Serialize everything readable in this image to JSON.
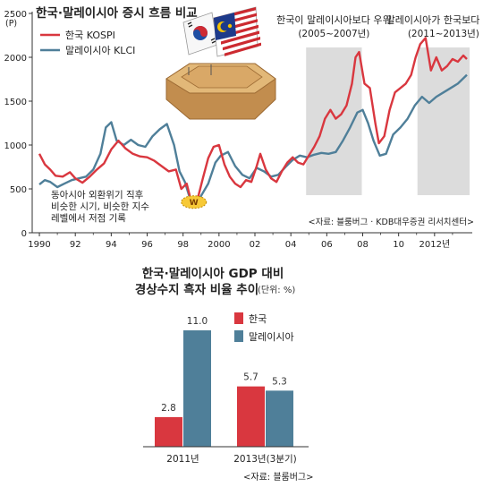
{
  "colors": {
    "korea": "#d9373f",
    "malaysia": "#4f7f99",
    "shade": "#dcdcdc",
    "axis": "#333333",
    "pedestal_top": "#e2b878",
    "pedestal_side": "#c28d4e"
  },
  "chart_data": [
    {
      "type": "line",
      "title": "한국·말레이시아 증시 흐름 비교",
      "unit_label": "(P)",
      "x_tick_labels": [
        "1990",
        "92",
        "94",
        "96",
        "98",
        "2000",
        "02",
        "04",
        "06",
        "08",
        "10",
        "2012년"
      ],
      "x_tick_values": [
        1990,
        1992,
        1994,
        1996,
        1998,
        2000,
        2002,
        2004,
        2006,
        2008,
        2010,
        2012
      ],
      "y_ticks": [
        0,
        500,
        1000,
        1500,
        2000,
        2500
      ],
      "xlim": [
        1989.6,
        2014.1
      ],
      "ylim": [
        0,
        2500
      ],
      "grid": false,
      "legend_position": "top-left",
      "series": [
        {
          "name": "한국 KOSPI",
          "color_key": "korea",
          "x": [
            1990,
            1990.3,
            1990.6,
            1990.9,
            1991.3,
            1991.7,
            1992.0,
            1992.4,
            1992.8,
            1993.2,
            1993.6,
            1994.0,
            1994.4,
            1994.8,
            1995.2,
            1995.6,
            1996.0,
            1996.4,
            1996.8,
            1997.2,
            1997.6,
            1997.9,
            1998.2,
            1998.5,
            1998.8,
            1999.1,
            1999.4,
            1999.7,
            2000.0,
            2000.3,
            2000.6,
            2000.9,
            2001.2,
            2001.5,
            2001.8,
            2002.1,
            2002.3,
            2002.6,
            2002.9,
            2003.2,
            2003.5,
            2003.8,
            2004.1,
            2004.4,
            2004.7,
            2005.0,
            2005.3,
            2005.6,
            2005.9,
            2006.2,
            2006.5,
            2006.8,
            2007.1,
            2007.4,
            2007.6,
            2007.8,
            2008.1,
            2008.4,
            2008.7,
            2008.9,
            2009.2,
            2009.5,
            2009.8,
            2010.1,
            2010.4,
            2010.7,
            2010.95,
            2011.2,
            2011.5,
            2011.8,
            2012.1,
            2012.4,
            2012.7,
            2013.0,
            2013.3,
            2013.6,
            2013.8
          ],
          "y": [
            900,
            780,
            720,
            650,
            640,
            690,
            620,
            570,
            640,
            720,
            790,
            950,
            1050,
            960,
            900,
            870,
            860,
            820,
            760,
            700,
            720,
            500,
            560,
            320,
            380,
            620,
            850,
            980,
            1000,
            780,
            640,
            560,
            520,
            600,
            580,
            760,
            900,
            720,
            620,
            580,
            700,
            800,
            860,
            800,
            780,
            880,
            980,
            1100,
            1300,
            1400,
            1300,
            1350,
            1450,
            1700,
            2000,
            2060,
            1700,
            1650,
            1250,
            1020,
            1100,
            1400,
            1600,
            1650,
            1700,
            1800,
            2000,
            2150,
            2220,
            1850,
            2000,
            1850,
            1900,
            1980,
            1950,
            2020,
            1980
          ]
        },
        {
          "name": "말레이시아 KLCI",
          "color_key": "malaysia",
          "x": [
            1990,
            1990.3,
            1990.6,
            1991.0,
            1991.4,
            1991.8,
            1992.2,
            1992.6,
            1993.0,
            1993.4,
            1993.7,
            1994.0,
            1994.3,
            1994.7,
            1995.1,
            1995.5,
            1995.9,
            1996.3,
            1996.7,
            1997.1,
            1997.5,
            1997.8,
            1998.1,
            1998.4,
            1998.7,
            1999.0,
            1999.4,
            1999.8,
            2000.1,
            2000.5,
            2000.9,
            2001.3,
            2001.7,
            2002.1,
            2002.5,
            2002.9,
            2003.3,
            2003.7,
            2004.1,
            2004.5,
            2004.9,
            2005.3,
            2005.7,
            2006.1,
            2006.5,
            2006.9,
            2007.3,
            2007.7,
            2008.0,
            2008.3,
            2008.6,
            2008.95,
            2009.3,
            2009.7,
            2010.1,
            2010.5,
            2010.9,
            2011.3,
            2011.7,
            2012.1,
            2012.5,
            2012.9,
            2013.3,
            2013.8
          ],
          "y": [
            550,
            600,
            580,
            520,
            560,
            600,
            620,
            640,
            720,
            900,
            1200,
            1260,
            1050,
            1000,
            1060,
            1000,
            980,
            1100,
            1180,
            1240,
            1000,
            700,
            580,
            380,
            300,
            420,
            560,
            800,
            880,
            920,
            760,
            660,
            620,
            740,
            700,
            640,
            660,
            750,
            830,
            880,
            860,
            890,
            910,
            900,
            920,
            1050,
            1200,
            1370,
            1400,
            1250,
            1050,
            880,
            900,
            1120,
            1200,
            1300,
            1450,
            1550,
            1480,
            1550,
            1600,
            1650,
            1700,
            1800
          ]
        }
      ],
      "shaded_periods": [
        {
          "label_line1": "한국이 말레이시아보다 우위",
          "label_line2": "(2005~2007년)",
          "x_start": 2004.85,
          "x_end": 2007.95
        },
        {
          "label_line1": "말레이시아가 한국보다 우위",
          "label_line2": "(2011~2013년)",
          "x_start": 2011.05,
          "x_end": 2013.95
        }
      ],
      "annotation": {
        "lines": [
          "동아시아 외환위기 직후",
          "비슷한 시기, 비슷한 지수",
          "레벨에서 저점 기록"
        ],
        "badge": "W",
        "x": 1998.6,
        "y": 350
      },
      "source": "<자료: 블룸버그 · KDB대우증권 리서치센터>"
    },
    {
      "type": "bar",
      "title_line1": "한국·말레이시아 GDP 대비",
      "title_line2": "경상수지 흑자 비율 추이",
      "unit_label": "(단위: %)",
      "categories": [
        "2011년",
        "2013년(3분기)"
      ],
      "series": [
        {
          "name": "한국",
          "color_key": "korea",
          "values": [
            2.8,
            5.7
          ],
          "labels": [
            "2.8",
            "5.7"
          ]
        },
        {
          "name": "말레이시아",
          "color_key": "malaysia",
          "values": [
            11.0,
            5.3
          ],
          "labels": [
            "11.0",
            "5.3"
          ]
        }
      ],
      "ylim": [
        0,
        11.0
      ],
      "source": "<자료: 블룸버그>"
    }
  ]
}
